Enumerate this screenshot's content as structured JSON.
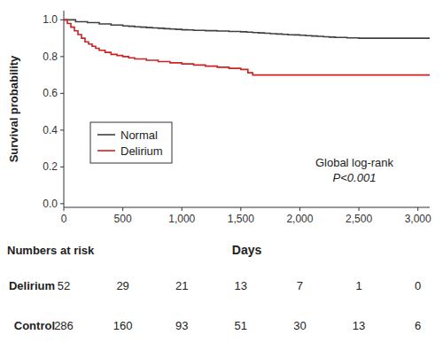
{
  "chart_data": {
    "type": "step",
    "ylabel": "Survival probability",
    "xlabel": "Days",
    "series": [
      {
        "name": "Normal",
        "color": "#404040",
        "x": [
          0,
          100,
          200,
          300,
          400,
          500,
          550,
          600,
          650,
          700,
          750,
          800,
          850,
          900,
          950,
          1000,
          1050,
          1100,
          1200,
          1300,
          1400,
          1500,
          1550,
          1600,
          1650,
          1700,
          1750,
          1800,
          1850,
          1900,
          1950,
          2000,
          2050,
          2100,
          2150,
          2200,
          2250,
          2300,
          2400,
          2500,
          2550,
          2600,
          2650,
          2700,
          2800,
          2900,
          3000,
          3100
        ],
        "values": [
          1.0,
          0.99,
          0.985,
          0.978,
          0.972,
          0.967,
          0.965,
          0.962,
          0.96,
          0.958,
          0.956,
          0.954,
          0.952,
          0.95,
          0.948,
          0.946,
          0.945,
          0.943,
          0.941,
          0.939,
          0.937,
          0.935,
          0.933,
          0.931,
          0.929,
          0.927,
          0.925,
          0.923,
          0.921,
          0.919,
          0.918,
          0.916,
          0.914,
          0.912,
          0.91,
          0.908,
          0.906,
          0.904,
          0.902,
          0.9,
          0.9,
          0.9,
          0.9,
          0.9,
          0.9,
          0.9,
          0.9,
          0.9
        ]
      },
      {
        "name": "Delirium",
        "color": "#cc2222",
        "x": [
          0,
          30,
          60,
          90,
          120,
          150,
          180,
          210,
          240,
          270,
          300,
          350,
          400,
          450,
          500,
          550,
          600,
          700,
          800,
          900,
          1000,
          1100,
          1200,
          1300,
          1400,
          1500,
          1560,
          1600,
          1700,
          1800,
          1900,
          2000,
          2100,
          2200,
          2300,
          2400,
          2500,
          2600,
          2700,
          2800,
          2900,
          3000,
          3100
        ],
        "values": [
          1.0,
          0.98,
          0.96,
          0.94,
          0.92,
          0.9,
          0.88,
          0.868,
          0.856,
          0.845,
          0.834,
          0.823,
          0.812,
          0.806,
          0.8,
          0.793,
          0.787,
          0.78,
          0.773,
          0.766,
          0.76,
          0.754,
          0.748,
          0.742,
          0.736,
          0.73,
          0.712,
          0.7,
          0.7,
          0.7,
          0.7,
          0.7,
          0.7,
          0.7,
          0.7,
          0.7,
          0.7,
          0.7,
          0.7,
          0.7,
          0.7,
          0.7,
          0.7
        ]
      }
    ],
    "xlim": [
      0,
      3100
    ],
    "ylim": [
      -0.02,
      1.05
    ],
    "xticks": [
      0,
      500,
      {
        "value": 1000,
        "label": "1,000"
      },
      {
        "value": 1500,
        "label": "1,500"
      },
      {
        "value": 2000,
        "label": "2,000"
      },
      {
        "value": 2500,
        "label": "2,500"
      },
      {
        "value": 3000,
        "label": "3,000"
      }
    ],
    "yticks": [
      {
        "value": 0.0,
        "label": "0.0"
      },
      0.2,
      0.4,
      0.6,
      0.8,
      {
        "value": 1.0,
        "label": "1.0"
      }
    ],
    "grid": false,
    "legend": "lower left",
    "annotations": [
      "Global log-rank",
      "P<0.001"
    ],
    "risk_table": {
      "title": "Numbers at risk",
      "x": [
        0,
        500,
        1000,
        1500,
        2000,
        2500,
        3000
      ],
      "rows": [
        {
          "name": "Delirium",
          "values": [
            52,
            29,
            21,
            13,
            7,
            1,
            0
          ]
        },
        {
          "name": "Control",
          "values": [
            286,
            160,
            93,
            51,
            30,
            13,
            6
          ]
        }
      ]
    }
  }
}
